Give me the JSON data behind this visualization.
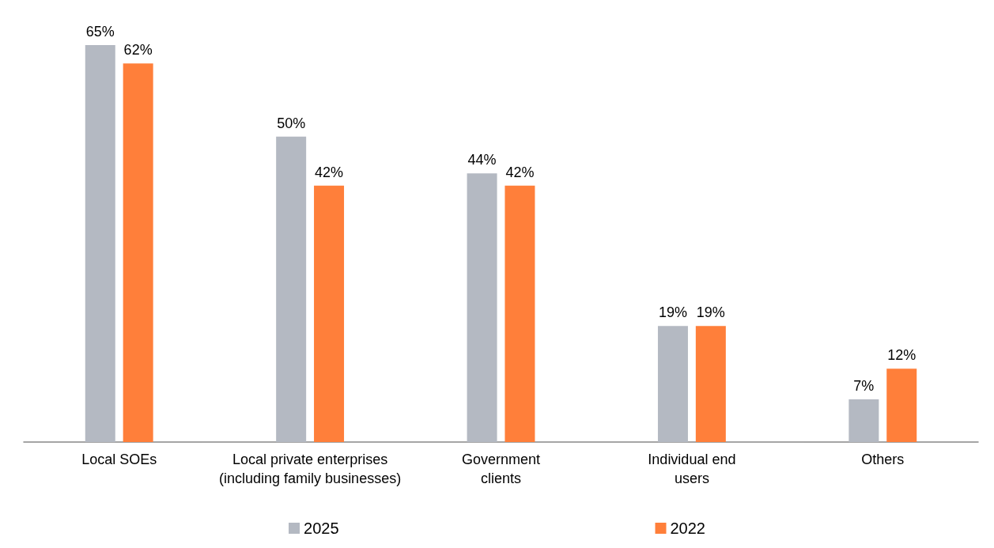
{
  "chart_data": {
    "type": "bar",
    "categories": [
      "Local SOEs",
      "Local private enterprises\n(including family businesses)",
      "Government\nclients",
      "Individual end\nusers",
      "Others"
    ],
    "series": [
      {
        "name": "2025",
        "color": "#b4b9c2",
        "values": [
          65,
          50,
          44,
          19,
          7
        ],
        "value_labels": [
          "65%",
          "50%",
          "44%",
          "19%",
          "7%"
        ]
      },
      {
        "name": "2022",
        "color": "#ff7f3a",
        "values": [
          62,
          42,
          42,
          19,
          12
        ],
        "value_labels": [
          "62%",
          "42%",
          "42%",
          "19%",
          "12%"
        ]
      }
    ],
    "legend": "bottom"
  }
}
